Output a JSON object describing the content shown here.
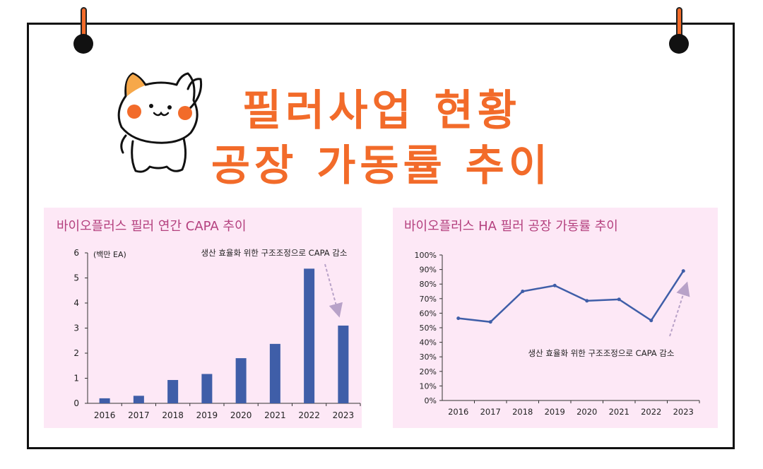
{
  "header": {
    "title_line1": "필러사업 현황",
    "title_line2": "공장 가동률 추이"
  },
  "colors": {
    "accent": "#f26b2a",
    "panel_bg": "#fde8f6",
    "panel_title": "#b4407e",
    "series": "#3f5ea8",
    "annotation_arrow": "#b8a2c8"
  },
  "chart_data": [
    {
      "type": "bar",
      "title": "바이오플러스 필러 연간 CAPA 추이",
      "unit_label": "(백만 EA)",
      "categories": [
        "2016",
        "2017",
        "2018",
        "2019",
        "2020",
        "2021",
        "2022",
        "2023"
      ],
      "values": [
        0.2,
        0.3,
        0.93,
        1.17,
        1.8,
        2.37,
        5.37,
        3.1
      ],
      "ylim": [
        0,
        6
      ],
      "yticks": [
        "0",
        "1",
        "2",
        "3",
        "4",
        "5",
        "6"
      ],
      "annotation": "생산 효율화 위한 구조조정으로 CAPA 감소",
      "grid": false
    },
    {
      "type": "line",
      "title": "바이오플러스 HA 필러 공장 가동률 추이",
      "categories": [
        "2016",
        "2017",
        "2018",
        "2019",
        "2020",
        "2021",
        "2022",
        "2023"
      ],
      "values": [
        56.5,
        54,
        75,
        79,
        68.5,
        69.5,
        55,
        89
      ],
      "ylim": [
        0,
        100
      ],
      "yticks": [
        "0%",
        "10%",
        "20%",
        "30%",
        "40%",
        "50%",
        "60%",
        "70%",
        "80%",
        "90%",
        "100%"
      ],
      "annotation": "생산 효율화 위한 구조조정으로 CAPA 감소",
      "grid": false
    }
  ]
}
